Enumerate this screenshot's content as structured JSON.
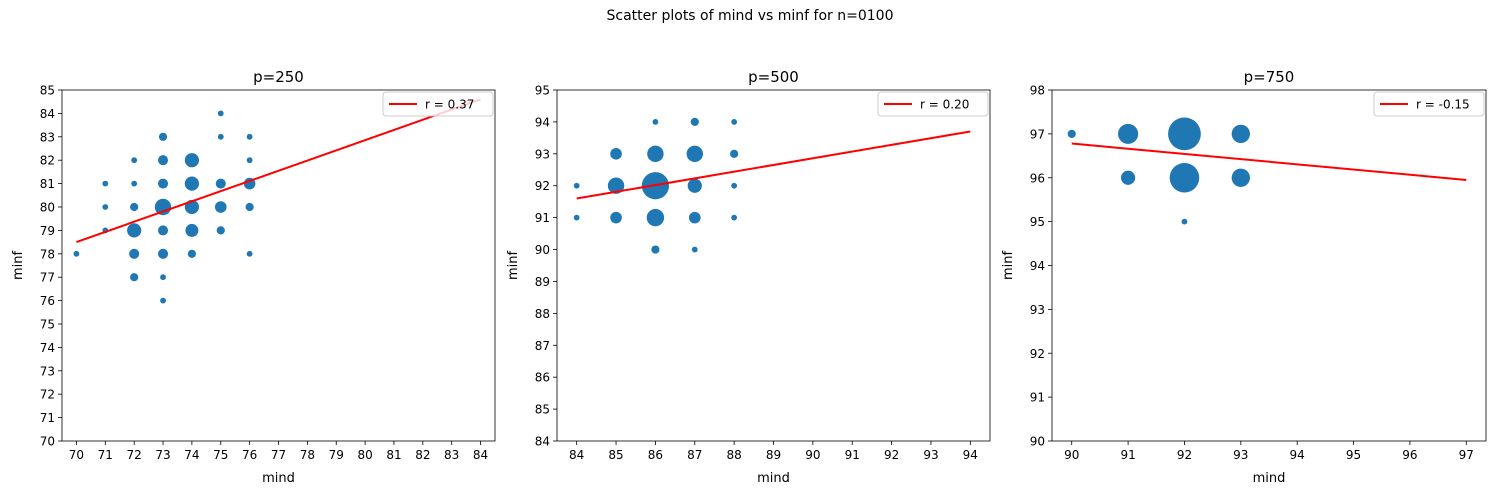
{
  "figure": {
    "suptitle": "Scatter plots of mind vs minf for n=0100",
    "colors": {
      "points": "#1f77b4",
      "fit_line": "#ff0000",
      "axes": "#000000"
    }
  },
  "chart_data": [
    {
      "type": "scatter",
      "title": "p=250",
      "xlabel": "mind",
      "ylabel": "minf",
      "xlim": [
        69.5,
        84.5
      ],
      "ylim": [
        70,
        85
      ],
      "xticks": [
        70,
        71,
        72,
        73,
        74,
        75,
        76,
        77,
        78,
        79,
        80,
        81,
        82,
        83,
        84
      ],
      "yticks": [
        70,
        71,
        72,
        73,
        74,
        75,
        76,
        77,
        78,
        79,
        80,
        81,
        82,
        83,
        84,
        85
      ],
      "legend": {
        "label": "r = 0.37",
        "placement": "upper right"
      },
      "fit_line": {
        "x": [
          70,
          84
        ],
        "y": [
          78.5,
          84.6
        ]
      },
      "points": [
        {
          "x": 70,
          "y": 78,
          "count": 1
        },
        {
          "x": 71,
          "y": 79,
          "count": 1
        },
        {
          "x": 71,
          "y": 80,
          "count": 1
        },
        {
          "x": 71,
          "y": 81,
          "count": 1
        },
        {
          "x": 72,
          "y": 77,
          "count": 2
        },
        {
          "x": 72,
          "y": 78,
          "count": 3
        },
        {
          "x": 72,
          "y": 79,
          "count": 6
        },
        {
          "x": 72,
          "y": 80,
          "count": 2
        },
        {
          "x": 72,
          "y": 81,
          "count": 1
        },
        {
          "x": 72,
          "y": 82,
          "count": 1
        },
        {
          "x": 73,
          "y": 76,
          "count": 1
        },
        {
          "x": 73,
          "y": 77,
          "count": 1
        },
        {
          "x": 73,
          "y": 78,
          "count": 3
        },
        {
          "x": 73,
          "y": 79,
          "count": 3
        },
        {
          "x": 73,
          "y": 80,
          "count": 8
        },
        {
          "x": 73,
          "y": 81,
          "count": 3
        },
        {
          "x": 73,
          "y": 82,
          "count": 3
        },
        {
          "x": 73,
          "y": 83,
          "count": 2
        },
        {
          "x": 74,
          "y": 78,
          "count": 2
        },
        {
          "x": 74,
          "y": 79,
          "count": 5
        },
        {
          "x": 74,
          "y": 80,
          "count": 6
        },
        {
          "x": 74,
          "y": 81,
          "count": 6
        },
        {
          "x": 74,
          "y": 82,
          "count": 6
        },
        {
          "x": 75,
          "y": 79,
          "count": 2
        },
        {
          "x": 75,
          "y": 80,
          "count": 4
        },
        {
          "x": 75,
          "y": 81,
          "count": 3
        },
        {
          "x": 75,
          "y": 83,
          "count": 1
        },
        {
          "x": 75,
          "y": 84,
          "count": 1
        },
        {
          "x": 76,
          "y": 78,
          "count": 1
        },
        {
          "x": 76,
          "y": 80,
          "count": 2
        },
        {
          "x": 76,
          "y": 81,
          "count": 4
        },
        {
          "x": 76,
          "y": 82,
          "count": 1
        },
        {
          "x": 76,
          "y": 83,
          "count": 1
        }
      ]
    },
    {
      "type": "scatter",
      "title": "p=500",
      "xlabel": "mind",
      "ylabel": "minf",
      "xlim": [
        83.5,
        94.5
      ],
      "ylim": [
        84,
        95
      ],
      "xticks": [
        84,
        85,
        86,
        87,
        88,
        89,
        90,
        91,
        92,
        93,
        94
      ],
      "yticks": [
        84,
        85,
        86,
        87,
        88,
        89,
        90,
        91,
        92,
        93,
        94,
        95
      ],
      "legend": {
        "label": "r = 0.20",
        "placement": "upper right"
      },
      "fit_line": {
        "x": [
          84,
          94
        ],
        "y": [
          91.6,
          93.7
        ]
      },
      "points": [
        {
          "x": 84,
          "y": 91,
          "count": 1
        },
        {
          "x": 84,
          "y": 92,
          "count": 1
        },
        {
          "x": 85,
          "y": 91,
          "count": 4
        },
        {
          "x": 85,
          "y": 92,
          "count": 8
        },
        {
          "x": 85,
          "y": 93,
          "count": 4
        },
        {
          "x": 86,
          "y": 90,
          "count": 2
        },
        {
          "x": 86,
          "y": 91,
          "count": 9
        },
        {
          "x": 86,
          "y": 92,
          "count": 22
        },
        {
          "x": 86,
          "y": 93,
          "count": 8
        },
        {
          "x": 86,
          "y": 94,
          "count": 1
        },
        {
          "x": 87,
          "y": 90,
          "count": 1
        },
        {
          "x": 87,
          "y": 91,
          "count": 4
        },
        {
          "x": 87,
          "y": 92,
          "count": 6
        },
        {
          "x": 87,
          "y": 93,
          "count": 8
        },
        {
          "x": 87,
          "y": 94,
          "count": 2
        },
        {
          "x": 88,
          "y": 91,
          "count": 1
        },
        {
          "x": 88,
          "y": 92,
          "count": 1
        },
        {
          "x": 88,
          "y": 93,
          "count": 2
        },
        {
          "x": 88,
          "y": 94,
          "count": 1
        }
      ]
    },
    {
      "type": "scatter",
      "title": "p=750",
      "xlabel": "mind",
      "ylabel": "minf",
      "xlim": [
        89.65,
        97.35
      ],
      "ylim": [
        90,
        98
      ],
      "xticks": [
        90,
        91,
        92,
        93,
        94,
        95,
        96,
        97
      ],
      "yticks": [
        90,
        91,
        92,
        93,
        94,
        95,
        96,
        97,
        98
      ],
      "legend": {
        "label": "r = -0.15",
        "placement": "upper right"
      },
      "fit_line": {
        "x": [
          90,
          97
        ],
        "y": [
          96.78,
          95.95
        ]
      },
      "points": [
        {
          "x": 90,
          "y": 97,
          "count": 2
        },
        {
          "x": 91,
          "y": 96,
          "count": 6
        },
        {
          "x": 91,
          "y": 97,
          "count": 12
        },
        {
          "x": 92,
          "y": 95,
          "count": 1
        },
        {
          "x": 92,
          "y": 96,
          "count": 26
        },
        {
          "x": 92,
          "y": 97,
          "count": 32
        },
        {
          "x": 93,
          "y": 96,
          "count": 10
        },
        {
          "x": 93,
          "y": 97,
          "count": 10
        }
      ]
    }
  ]
}
